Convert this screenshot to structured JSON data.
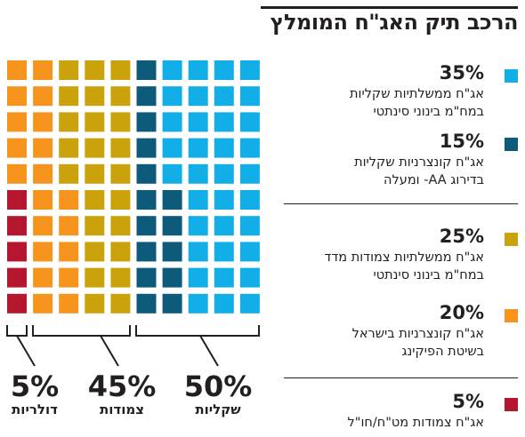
{
  "title": "הרכב תיק האג\"ח המומלץ",
  "colors": {
    "light_blue": "#12aee8",
    "dark_blue": "#0d5a7a",
    "gold": "#c9a20c",
    "orange": "#f7941d",
    "red": "#b5182e"
  },
  "legend": [
    {
      "pct": "35%",
      "line1": "אג\"ח ממשלתיות שקליות",
      "line2": "במח\"מ בינוני סינתטי",
      "color_key": "light_blue"
    },
    {
      "pct": "15%",
      "line1": "אג\"ח קונצרניות שקליות",
      "line2": "בדירוג AA- ומעלה",
      "color_key": "dark_blue"
    },
    {
      "pct": "25%",
      "line1": "אג\"ח ממשלתיות צמודות מדד",
      "line2": "במח\"מ בינוני סינתטי",
      "color_key": "gold"
    },
    {
      "pct": "20%",
      "line1": "אג\"ח קונצרניות בישראל",
      "line2": "בשיטת הפיקינג",
      "color_key": "orange"
    },
    {
      "pct": "5%",
      "line1": "אג\"ח צמודות מט\"ח/חו\"ל",
      "line2": "",
      "color_key": "red"
    }
  ],
  "groups": [
    {
      "pct": "50%",
      "name": "שקליות"
    },
    {
      "pct": "45%",
      "name": "צמודות"
    },
    {
      "pct": "5%",
      "name": "דולריות"
    }
  ],
  "chart_data": {
    "type": "waffle",
    "grid": {
      "rows": 10,
      "cols": 10
    },
    "series": [
      {
        "name": "אג\"ח ממשלתיות שקליות במח\"מ בינוני סינתטי",
        "value": 35,
        "color_key": "light_blue"
      },
      {
        "name": "אג\"ח קונצרניות שקליות בדירוג AA- ומעלה",
        "value": 15,
        "color_key": "dark_blue"
      },
      {
        "name": "אג\"ח ממשלתיות צמודות מדד במח\"מ בינוני סינתטי",
        "value": 25,
        "color_key": "gold"
      },
      {
        "name": "אג\"ח קונצרניות בישראל בשיטת הפיקינג",
        "value": 20,
        "color_key": "orange"
      },
      {
        "name": "אג\"ח צמודות מט\"ח/חו\"ל",
        "value": 5,
        "color_key": "red"
      }
    ]
  }
}
